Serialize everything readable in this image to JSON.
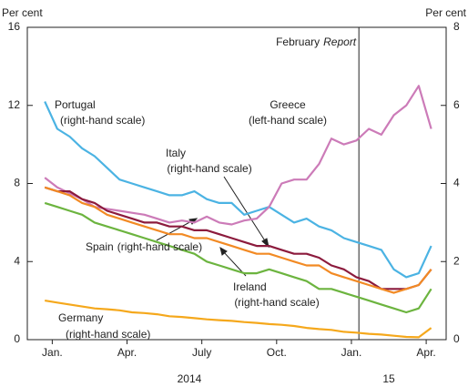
{
  "chart_data": {
    "type": "line",
    "y_label": "Per cent",
    "y2_label": "Per cent",
    "ylim": [
      0,
      16
    ],
    "yticks": [
      0,
      4,
      8,
      12,
      16
    ],
    "y2lim": [
      0,
      8
    ],
    "y2ticks": [
      0,
      2,
      4,
      6,
      8
    ],
    "xlim": [
      -1,
      15.8
    ],
    "xticks": [
      {
        "value": 0,
        "label": "Jan."
      },
      {
        "value": 3,
        "label": "Apr."
      },
      {
        "value": 6,
        "label": "July"
      },
      {
        "value": 9,
        "label": "Oct."
      },
      {
        "value": 12,
        "label": "Jan."
      },
      {
        "value": 15,
        "label": "Apr."
      }
    ],
    "year_labels": [
      {
        "value": 5.5,
        "label": "2014"
      },
      {
        "value": 13.5,
        "label": "15"
      }
    ],
    "vline": {
      "x": 12.3,
      "label": "February",
      "label_italic": "Report"
    },
    "x": [
      -0.3,
      0.2,
      0.7,
      1.2,
      1.7,
      2.2,
      2.7,
      3.2,
      3.7,
      4.2,
      4.7,
      5.2,
      5.7,
      6.2,
      6.7,
      7.2,
      7.7,
      8.2,
      8.7,
      9.2,
      9.7,
      10.2,
      10.7,
      11.2,
      11.7,
      12.2,
      12.7,
      13.2,
      13.7,
      14.2,
      14.7,
      15.2
    ],
    "series": [
      {
        "name": "Portugal",
        "note": "(right-hand scale)",
        "axis": "y2",
        "color": "#4bb3e3",
        "values": [
          6.1,
          5.4,
          5.2,
          4.9,
          4.7,
          4.4,
          4.1,
          4.0,
          3.9,
          3.8,
          3.7,
          3.7,
          3.8,
          3.6,
          3.5,
          3.5,
          3.2,
          3.3,
          3.4,
          3.2,
          3.0,
          3.1,
          2.9,
          2.8,
          2.6,
          2.5,
          2.4,
          2.3,
          1.8,
          1.6,
          1.7,
          2.4
        ]
      },
      {
        "name": "Greece",
        "note": "(left-hand scale)",
        "axis": "y",
        "color": "#cc7bb8",
        "values": [
          8.3,
          7.8,
          7.5,
          7.2,
          6.8,
          6.7,
          6.6,
          6.5,
          6.4,
          6.2,
          6.0,
          6.1,
          6.0,
          6.3,
          6.0,
          5.9,
          6.1,
          6.2,
          6.8,
          8.0,
          8.2,
          8.2,
          9.0,
          10.3,
          10.0,
          10.2,
          10.8,
          10.5,
          11.5,
          12.0,
          13.0,
          10.8
        ]
      },
      {
        "name": "Italy",
        "note": "(right-hand scale)",
        "axis": "y2",
        "color": "#8c1b3d",
        "values": [
          3.9,
          3.8,
          3.8,
          3.6,
          3.5,
          3.3,
          3.2,
          3.1,
          3.0,
          3.0,
          2.9,
          2.9,
          2.8,
          2.8,
          2.7,
          2.6,
          2.5,
          2.4,
          2.4,
          2.3,
          2.2,
          2.2,
          2.1,
          1.9,
          1.8,
          1.6,
          1.5,
          1.3,
          1.3,
          1.3,
          1.4,
          1.8
        ]
      },
      {
        "name": "Spain",
        "note": "(right-hand scale)",
        "axis": "y2",
        "color": "#f28a24",
        "values": [
          3.9,
          3.8,
          3.7,
          3.5,
          3.4,
          3.2,
          3.1,
          3.0,
          2.9,
          2.8,
          2.7,
          2.7,
          2.6,
          2.6,
          2.5,
          2.4,
          2.3,
          2.2,
          2.2,
          2.1,
          2.0,
          1.9,
          1.9,
          1.7,
          1.6,
          1.5,
          1.4,
          1.3,
          1.2,
          1.3,
          1.4,
          1.8
        ]
      },
      {
        "name": "Ireland",
        "note": "(right-hand scale)",
        "axis": "y2",
        "color": "#6cb43f",
        "values": [
          3.5,
          3.4,
          3.3,
          3.2,
          3.0,
          2.9,
          2.8,
          2.7,
          2.6,
          2.5,
          2.4,
          2.3,
          2.2,
          2.0,
          1.9,
          1.8,
          1.7,
          1.7,
          1.8,
          1.7,
          1.6,
          1.5,
          1.3,
          1.3,
          1.2,
          1.1,
          1.0,
          0.9,
          0.8,
          0.7,
          0.8,
          1.3
        ]
      },
      {
        "name": "Germany",
        "note": "(right-hand scale)",
        "axis": "y2",
        "color": "#f5a81c",
        "values": [
          1.0,
          0.95,
          0.9,
          0.85,
          0.8,
          0.78,
          0.75,
          0.7,
          0.68,
          0.65,
          0.6,
          0.58,
          0.55,
          0.52,
          0.5,
          0.48,
          0.45,
          0.43,
          0.4,
          0.38,
          0.35,
          0.3,
          0.27,
          0.25,
          0.2,
          0.18,
          0.15,
          0.13,
          0.1,
          0.07,
          0.06,
          0.3
        ]
      }
    ]
  }
}
